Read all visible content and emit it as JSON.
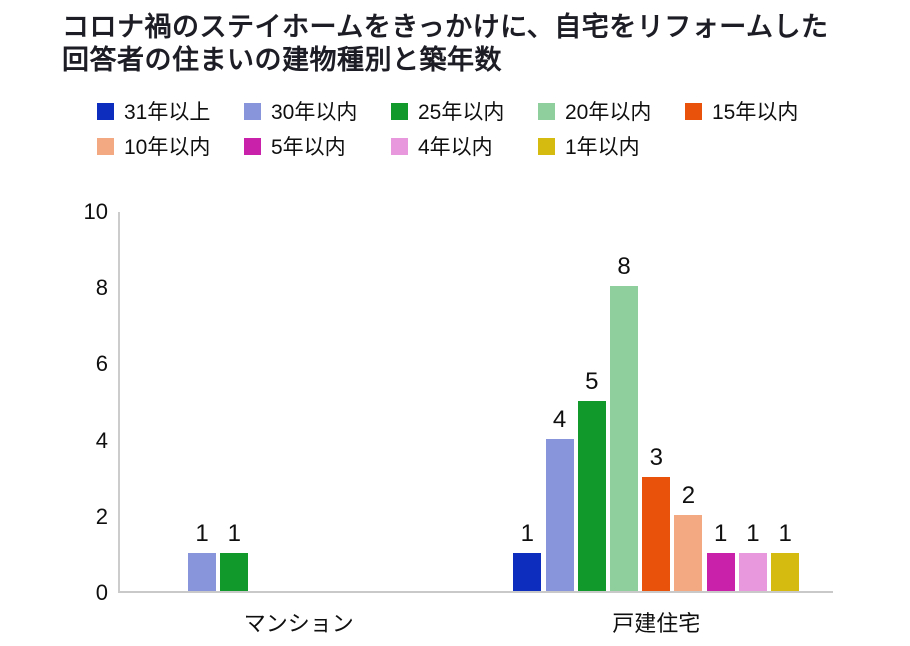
{
  "chart_data": {
    "type": "bar",
    "title": "コロナ禍のステイホームをきっかけに、自宅をリフォームした回答者の住まいの建物種別と築年数",
    "title_lines": [
      "コロナ禍のステイホームをきっかけに、自宅をリフォームした",
      "回答者の住まいの建物種別と築年数"
    ],
    "categories": [
      "マンション",
      "戸建住宅"
    ],
    "series": [
      {
        "name": "31年以上",
        "color": "#0c2dbd",
        "values": [
          null,
          1
        ]
      },
      {
        "name": "30年以内",
        "color": "#8895da",
        "values": [
          1,
          4
        ]
      },
      {
        "name": "25年以内",
        "color": "#12992c",
        "values": [
          1,
          5
        ]
      },
      {
        "name": "20年以内",
        "color": "#8fcf9e",
        "values": [
          null,
          8
        ]
      },
      {
        "name": "15年以内",
        "color": "#e8520a",
        "values": [
          null,
          3
        ]
      },
      {
        "name": "10年以内",
        "color": "#f3aa82",
        "values": [
          null,
          2
        ]
      },
      {
        "name": "5年以内",
        "color": "#ca21aa",
        "values": [
          null,
          1
        ]
      },
      {
        "name": "4年以内",
        "color": "#e898dc",
        "values": [
          null,
          1
        ]
      },
      {
        "name": "1年以内",
        "color": "#d5ba10",
        "values": [
          null,
          1
        ]
      }
    ],
    "y_ticks": [
      0,
      2,
      4,
      6,
      8,
      10
    ],
    "ylim": [
      0,
      10
    ],
    "grid": false,
    "legend_position": "top",
    "axis_color": "#c9c9c9",
    "text_color": "#0f0f0f",
    "title_color": "#1d1d26",
    "background_color": "#ffffff"
  }
}
